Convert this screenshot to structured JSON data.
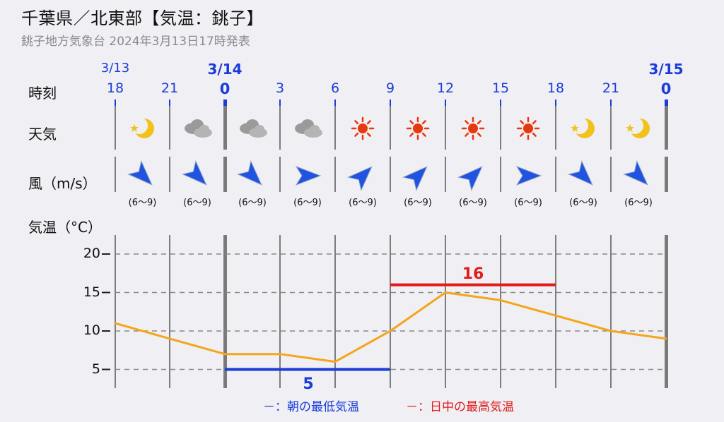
{
  "header": {
    "title": "千葉県／北東部【気温：銚子】",
    "subtitle": "銚子地方気象台 2024年3月13日17時発表"
  },
  "row_labels": {
    "time": "時刻",
    "weather": "天気",
    "wind": "風（m/s）",
    "temp": "気温（°C）"
  },
  "dates": [
    {
      "label": "3/13",
      "bold": false
    },
    {
      "label": "3/14",
      "bold": true
    },
    {
      "label": "3/15",
      "bold": true
    }
  ],
  "hours": [
    {
      "label": "18",
      "bold": false
    },
    {
      "label": "21",
      "bold": false
    },
    {
      "label": "0",
      "bold": true
    },
    {
      "label": "3",
      "bold": false
    },
    {
      "label": "6",
      "bold": false
    },
    {
      "label": "9",
      "bold": false
    },
    {
      "label": "12",
      "bold": false
    },
    {
      "label": "15",
      "bold": false
    },
    {
      "label": "18",
      "bold": false
    },
    {
      "label": "21",
      "bold": false
    },
    {
      "label": "0",
      "bold": true
    }
  ],
  "weather_icons": [
    "moon-icon",
    "cloud-icon",
    "cloud-icon",
    "cloud-icon",
    "sun-icon",
    "sun-icon",
    "sun-icon",
    "sun-icon",
    "moon-icon",
    "moon-icon"
  ],
  "wind": {
    "directions": [
      "NW",
      "NW",
      "NW",
      "W",
      "SW",
      "SW",
      "SW",
      "W",
      "NW",
      "NW"
    ],
    "speeds": [
      "(6～9)",
      "(6～9)",
      "(6～9)",
      "(6～9)",
      "(6～9)",
      "(6～9)",
      "(6～9)",
      "(6～9)",
      "(6～9)",
      "(6～9)"
    ]
  },
  "colors": {
    "line": "#f5a51a",
    "min": "#1a3cd8",
    "max": "#e21b1b",
    "sun": "#e8380d",
    "moon": "#f2c21b",
    "cloud": "#9a9a9a",
    "arrow": "#2053e0"
  },
  "chart_data": {
    "type": "line",
    "x": [
      "18",
      "21",
      "0",
      "3",
      "6",
      "9",
      "12",
      "15",
      "18",
      "21",
      "0"
    ],
    "series": [
      {
        "values": [
          11,
          9,
          7,
          7,
          6,
          10,
          15,
          14,
          12,
          10,
          9
        ]
      }
    ],
    "yticks": [
      5,
      10,
      15,
      20
    ],
    "ylim": [
      2.5,
      22.5
    ],
    "grid": true,
    "min_temp": {
      "value": "5",
      "from_hour": "0",
      "to_hour": "9"
    },
    "max_temp": {
      "value": "16",
      "from_hour": "9",
      "to_hour": "18"
    }
  },
  "legend": {
    "min_label": "－：朝の最低気温",
    "max_label": "－：日中の最高気温"
  }
}
